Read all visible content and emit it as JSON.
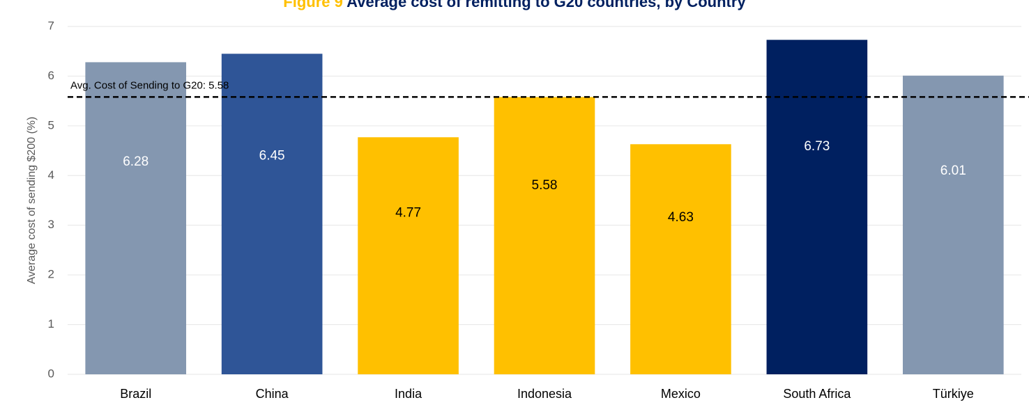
{
  "chart_data": {
    "type": "bar",
    "figure_label": "Figure 9",
    "title": "Average cost of remitting to G20 countries, by Country",
    "ylabel": "Average cost of sending $200 (%)",
    "categories": [
      "Brazil",
      "China",
      "India",
      "Indonesia",
      "Mexico",
      "South Africa",
      "Türkiye"
    ],
    "values": [
      6.28,
      6.45,
      4.77,
      5.58,
      4.63,
      6.73,
      6.01
    ],
    "colors": [
      "#8497b0",
      "#2f5597",
      "#ffc000",
      "#ffc000",
      "#ffc000",
      "#002060",
      "#8497b0"
    ],
    "label_colors": [
      "#ffffff",
      "#ffffff",
      "#000000",
      "#000000",
      "#000000",
      "#ffffff",
      "#ffffff"
    ],
    "ylim": [
      0,
      7
    ],
    "yticks": [
      0,
      1,
      2,
      3,
      4,
      5,
      6,
      7
    ],
    "grid": true,
    "reference_line": {
      "value": 5.58,
      "label": "Avg. Cost of Sending to G20: 5.58"
    }
  }
}
